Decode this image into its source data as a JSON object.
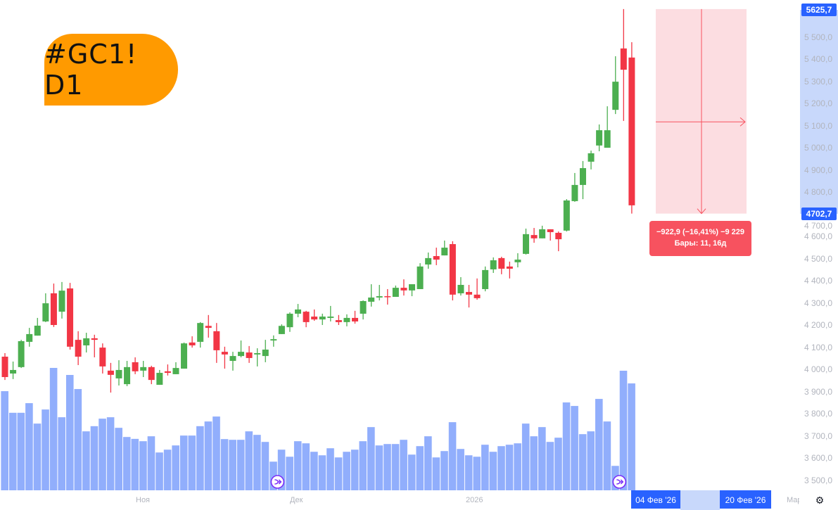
{
  "badge": {
    "text": "#GC1! D1",
    "color": "#ff9a00"
  },
  "price_axis": {
    "ticks": [
      "5 500,0",
      "5 400,0",
      "5 300,0",
      "5 200,0",
      "5 100,0",
      "5 000,0",
      "4 900,0",
      "4 800,0",
      "4 700,0",
      "4 600,0",
      "4 500,0",
      "4 400,0",
      "4 300,0",
      "4 200,0",
      "4 100,0",
      "4 000,0",
      "3 900,0",
      "3 800,0",
      "3 700,0",
      "3 600,0",
      "3 500,0"
    ],
    "tick_values": [
      5500,
      5400,
      5300,
      5200,
      5100,
      5000,
      4900,
      4800,
      4700,
      4600,
      4500,
      4400,
      4300,
      4200,
      4100,
      4000,
      3900,
      3800,
      3700,
      3600,
      3500
    ],
    "high_tag": "5625,7",
    "low_tag": "4702,7"
  },
  "time_axis": {
    "labels": [
      "Ноя",
      "Дек",
      "2026",
      "Мар"
    ],
    "range_start": "04 Фев '26",
    "range_end": "20 Фев '26",
    "settings_icon": "settings-icon"
  },
  "measure": {
    "line1": "−922,9 (−16,41%) −9 229",
    "line2": "Бары: 11, 16д",
    "from_price": 5625.7,
    "to_price": 4702.7,
    "color": "#f7525f",
    "fill": "#fcdde1"
  },
  "chart_data": {
    "type": "candlestick",
    "title": "#GC1! D1",
    "up_color": "#4caf50",
    "down_color": "#f23645",
    "volume_color": "#91aefc",
    "ylim": [
      3450,
      5660
    ],
    "candles": [
      [
        4057,
        4073,
        3952,
        3965
      ],
      [
        3981,
        4035,
        3956,
        3997
      ],
      [
        4010,
        4133,
        4006,
        4127
      ],
      [
        4124,
        4187,
        4102,
        4159
      ],
      [
        4152,
        4232,
        4152,
        4197
      ],
      [
        4216,
        4343,
        4213,
        4298
      ],
      [
        4343,
        4387,
        4191,
        4200
      ],
      [
        4260,
        4394,
        4229,
        4355
      ],
      [
        4365,
        4390,
        4089,
        4102
      ],
      [
        4133,
        4172,
        4019,
        4057
      ],
      [
        4108,
        4165,
        4076,
        4140
      ],
      [
        4140,
        4156,
        4054,
        4133
      ],
      [
        4098,
        4117,
        3981,
        4013
      ],
      [
        3994,
        4029,
        3895,
        3975
      ],
      [
        3959,
        4041,
        3927,
        3997
      ],
      [
        3933,
        4038,
        3924,
        4010
      ],
      [
        4032,
        4054,
        3978,
        3991
      ],
      [
        3994,
        4038,
        3965,
        4010
      ],
      [
        4010,
        4016,
        3933,
        3952
      ],
      [
        3930,
        3997,
        3930,
        3984
      ],
      [
        3991,
        4022,
        3972,
        3984
      ],
      [
        3978,
        4032,
        3978,
        4006
      ],
      [
        4003,
        4121,
        4003,
        4117
      ],
      [
        4121,
        4149,
        4098,
        4108
      ],
      [
        4124,
        4213,
        4098,
        4209
      ],
      [
        4196,
        4245,
        4143,
        4187
      ],
      [
        4172,
        4209,
        4029,
        4086
      ],
      [
        4079,
        4102,
        4003,
        4067
      ],
      [
        4038,
        4079,
        3994,
        4060
      ],
      [
        4060,
        4130,
        4054,
        4079
      ],
      [
        4076,
        4105,
        4029,
        4051
      ],
      [
        4067,
        4095,
        4013,
        4073
      ],
      [
        4060,
        4133,
        4032,
        4089
      ],
      [
        4130,
        4153,
        4102,
        4136
      ],
      [
        4159,
        4203,
        4159,
        4196
      ],
      [
        4190,
        4257,
        4169,
        4251
      ],
      [
        4251,
        4295,
        4235,
        4270
      ],
      [
        4260,
        4264,
        4190,
        4213
      ],
      [
        4238,
        4270,
        4219,
        4225
      ],
      [
        4225,
        4251,
        4200,
        4238
      ],
      [
        4232,
        4286,
        4216,
        4238
      ],
      [
        4222,
        4245,
        4200,
        4213
      ],
      [
        4213,
        4248,
        4194,
        4232
      ],
      [
        4232,
        4264,
        4206,
        4216
      ],
      [
        4251,
        4311,
        4225,
        4308
      ],
      [
        4305,
        4384,
        4283,
        4324
      ],
      [
        4324,
        4381,
        4311,
        4330
      ],
      [
        4330,
        4362,
        4292,
        4327
      ],
      [
        4327,
        4378,
        4327,
        4368
      ],
      [
        4368,
        4406,
        4333,
        4356
      ],
      [
        4356,
        4384,
        4330,
        4384
      ],
      [
        4362,
        4479,
        4362,
        4464
      ],
      [
        4473,
        4527,
        4454,
        4502
      ],
      [
        4511,
        4549,
        4470,
        4495
      ],
      [
        4514,
        4581,
        4514,
        4549
      ],
      [
        4565,
        4578,
        4311,
        4337
      ],
      [
        4343,
        4416,
        4333,
        4381
      ],
      [
        4349,
        4381,
        4279,
        4337
      ],
      [
        4337,
        4410,
        4314,
        4321
      ],
      [
        4362,
        4464,
        4352,
        4448
      ],
      [
        4451,
        4505,
        4435,
        4492
      ],
      [
        4502,
        4508,
        4429,
        4454
      ],
      [
        4464,
        4486,
        4410,
        4454
      ],
      [
        4483,
        4524,
        4460,
        4495
      ],
      [
        4521,
        4635,
        4518,
        4610
      ],
      [
        4606,
        4638,
        4571,
        4591
      ],
      [
        4591,
        4648,
        4591,
        4632
      ],
      [
        4632,
        4632,
        4581,
        4619
      ],
      [
        4616,
        4622,
        4533,
        4587
      ],
      [
        4626,
        4768,
        4622,
        4762
      ],
      [
        4759,
        4886,
        4756,
        4832
      ],
      [
        4832,
        4940,
        4768,
        4908
      ],
      [
        4937,
        4987,
        4902,
        4975
      ],
      [
        5010,
        5105,
        4984,
        5079
      ],
      [
        5000,
        5187,
        5000,
        5079
      ],
      [
        5171,
        5413,
        5152,
        5298
      ],
      [
        5448,
        5625.7,
        5121,
        5352
      ],
      [
        5407,
        5476,
        4702.7,
        4740
      ]
    ],
    "volume_relative": [
      422,
      330,
      330,
      371,
      284,
      344,
      521,
      311,
      491,
      431,
      251,
      273,
      305,
      311,
      266,
      227,
      219,
      209,
      230,
      161,
      173,
      191,
      233,
      233,
      273,
      293,
      314,
      218,
      215,
      215,
      251,
      236,
      206,
      122,
      173,
      143,
      209,
      200,
      164,
      149,
      179,
      140,
      164,
      173,
      209,
      269,
      191,
      197,
      197,
      215,
      152,
      188,
      230,
      140,
      167,
      290,
      176,
      149,
      143,
      194,
      164,
      188,
      194,
      200,
      284,
      230,
      269,
      206,
      224,
      374,
      359,
      239,
      251,
      389,
      293,
      104,
      509,
      455
    ],
    "event_markers_at": [
      34,
      76
    ]
  }
}
